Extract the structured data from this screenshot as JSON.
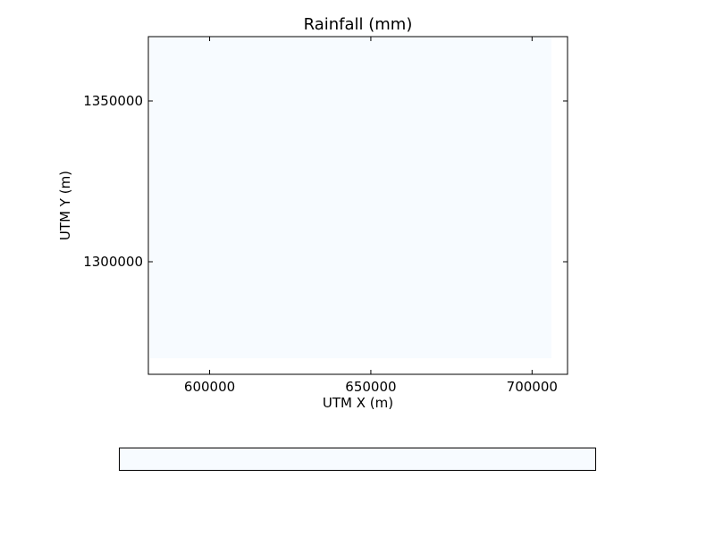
{
  "chart_data": {
    "type": "heatmap",
    "title": "Rainfall (mm)",
    "xlabel": "UTM X (m)",
    "ylabel": "UTM Y (m)",
    "xlim": [
      581000,
      711000
    ],
    "ylim": [
      1265000,
      1370000
    ],
    "xticks": [
      600000,
      650000,
      700000
    ],
    "yticks": [
      1300000,
      1350000
    ],
    "data_extent": {
      "x": [
        581500,
        706000
      ],
      "y": [
        1270000,
        1370000
      ]
    },
    "grid": false,
    "colormap": "Blues",
    "fill_color": "#f7fbff",
    "colorbar": {
      "orientation": "horizontal",
      "placement": "bottom",
      "tick_labels": []
    }
  }
}
